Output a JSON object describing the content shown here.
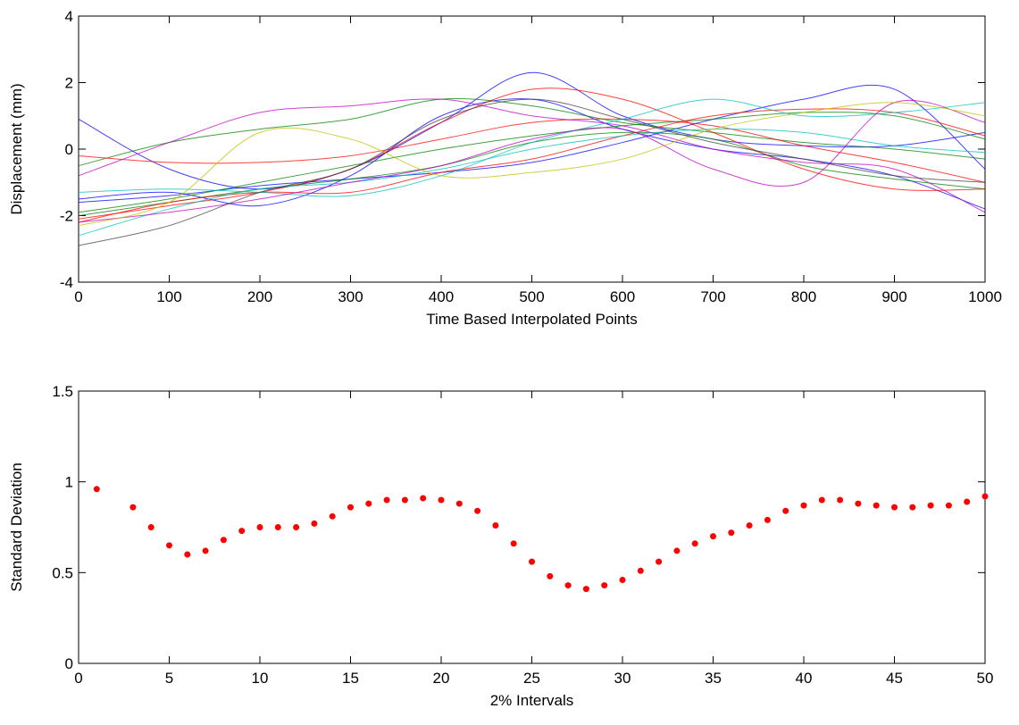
{
  "chart_data": [
    {
      "type": "line",
      "xlabel": "Time Based Interpolated Points",
      "ylabel": "Displacement (mm)",
      "x": [
        0,
        100,
        200,
        300,
        400,
        500,
        600,
        700,
        800,
        900,
        1000
      ],
      "xlim": [
        0,
        1000
      ],
      "xticks": [
        0,
        100,
        200,
        300,
        400,
        500,
        600,
        700,
        800,
        900,
        1000
      ],
      "ylim": [
        -4,
        4
      ],
      "yticks": [
        -4,
        -2,
        0,
        2,
        4
      ],
      "series": [
        {
          "color": "#0000ff",
          "values": [
            0.9,
            -0.6,
            -1.2,
            -0.6,
            0.8,
            2.3,
            1.0,
            0.3,
            0.1,
            0.1,
            0.5
          ]
        },
        {
          "color": "#0000ff",
          "values": [
            -1.5,
            -1.3,
            -1.7,
            -0.8,
            1.0,
            1.5,
            0.6,
            0.0,
            -0.3,
            -0.8,
            -1.8
          ]
        },
        {
          "color": "#0000ff",
          "values": [
            -1.6,
            -1.4,
            -1.1,
            -0.9,
            -0.7,
            -0.4,
            0.2,
            0.9,
            1.5,
            1.8,
            -0.6
          ]
        },
        {
          "color": "#008000",
          "values": [
            -0.5,
            0.2,
            0.6,
            0.9,
            1.5,
            1.3,
            0.8,
            0.5,
            0.2,
            0.0,
            -0.3
          ]
        },
        {
          "color": "#008000",
          "values": [
            -2.0,
            -1.6,
            -1.2,
            -0.9,
            -0.5,
            0.2,
            0.5,
            0.3,
            -0.5,
            -0.9,
            -1.2
          ]
        },
        {
          "color": "#008000",
          "values": [
            -1.9,
            -1.5,
            -1.0,
            -0.5,
            0.0,
            0.4,
            0.7,
            0.9,
            1.1,
            1.0,
            0.3
          ]
        },
        {
          "color": "#ff0000",
          "values": [
            -0.2,
            -0.4,
            -0.4,
            -0.2,
            0.3,
            0.8,
            0.9,
            0.7,
            0.1,
            -0.4,
            -1.0
          ]
        },
        {
          "color": "#ff0000",
          "values": [
            -2.1,
            -1.7,
            -1.3,
            -0.6,
            0.8,
            1.8,
            1.5,
            0.5,
            -0.6,
            -1.2,
            -1.2
          ]
        },
        {
          "color": "#ff0000",
          "values": [
            -2.2,
            -1.6,
            -1.3,
            -1.3,
            -0.7,
            -0.3,
            0.4,
            1.0,
            1.2,
            1.1,
            0.4
          ]
        },
        {
          "color": "#00bfbf",
          "values": [
            -1.3,
            -1.2,
            -1.3,
            -1.4,
            -0.8,
            0.2,
            0.9,
            1.5,
            1.0,
            1.1,
            1.4
          ]
        },
        {
          "color": "#00bfbf",
          "values": [
            -2.6,
            -1.8,
            -1.2,
            -1.0,
            -0.6,
            0.0,
            0.4,
            0.6,
            0.5,
            0.1,
            -0.1
          ]
        },
        {
          "color": "#bf00bf",
          "values": [
            -0.8,
            0.2,
            1.1,
            1.3,
            1.5,
            1.0,
            0.7,
            0.0,
            -0.4,
            -0.6,
            -1.9
          ]
        },
        {
          "color": "#bf00bf",
          "values": [
            -2.2,
            -1.9,
            -1.5,
            -1.0,
            -0.5,
            0.3,
            0.6,
            -0.6,
            -1.0,
            1.4,
            0.8
          ]
        },
        {
          "color": "#bfbf00",
          "values": [
            -2.3,
            -1.6,
            0.5,
            0.3,
            -0.8,
            -0.7,
            -0.3,
            0.6,
            1.1,
            1.4,
            1.0
          ]
        },
        {
          "color": "#404040",
          "values": [
            -2.9,
            -2.3,
            -1.3,
            -0.6,
            0.9,
            1.5,
            0.9,
            0.2,
            -0.3,
            -0.8,
            -1.0
          ]
        }
      ]
    },
    {
      "type": "scatter",
      "xlabel": "2% Intervals",
      "ylabel": "Standard Deviation",
      "color": "#ff0000",
      "x": [
        1,
        3,
        4,
        5,
        6,
        7,
        8,
        9,
        10,
        11,
        12,
        13,
        14,
        15,
        16,
        17,
        18,
        19,
        20,
        21,
        22,
        23,
        24,
        25,
        26,
        27,
        28,
        29,
        30,
        31,
        32,
        33,
        34,
        35,
        36,
        37,
        38,
        39,
        40,
        41,
        42,
        43,
        44,
        45,
        46,
        47,
        48,
        49,
        50
      ],
      "values": [
        0.96,
        0.86,
        0.75,
        0.65,
        0.6,
        0.62,
        0.68,
        0.73,
        0.75,
        0.75,
        0.75,
        0.77,
        0.81,
        0.86,
        0.88,
        0.9,
        0.9,
        0.91,
        0.9,
        0.88,
        0.84,
        0.76,
        0.66,
        0.56,
        0.48,
        0.43,
        0.41,
        0.43,
        0.46,
        0.51,
        0.56,
        0.62,
        0.66,
        0.7,
        0.72,
        0.76,
        0.79,
        0.84,
        0.87,
        0.9,
        0.9,
        0.88,
        0.87,
        0.86,
        0.86,
        0.87,
        0.87,
        0.89,
        0.92
      ],
      "xlim": [
        0,
        50
      ],
      "xticks": [
        0,
        5,
        10,
        15,
        20,
        25,
        30,
        35,
        40,
        45,
        50
      ],
      "ylim": [
        0,
        1.5
      ],
      "yticks": [
        0,
        0.5,
        1,
        1.5
      ]
    }
  ]
}
